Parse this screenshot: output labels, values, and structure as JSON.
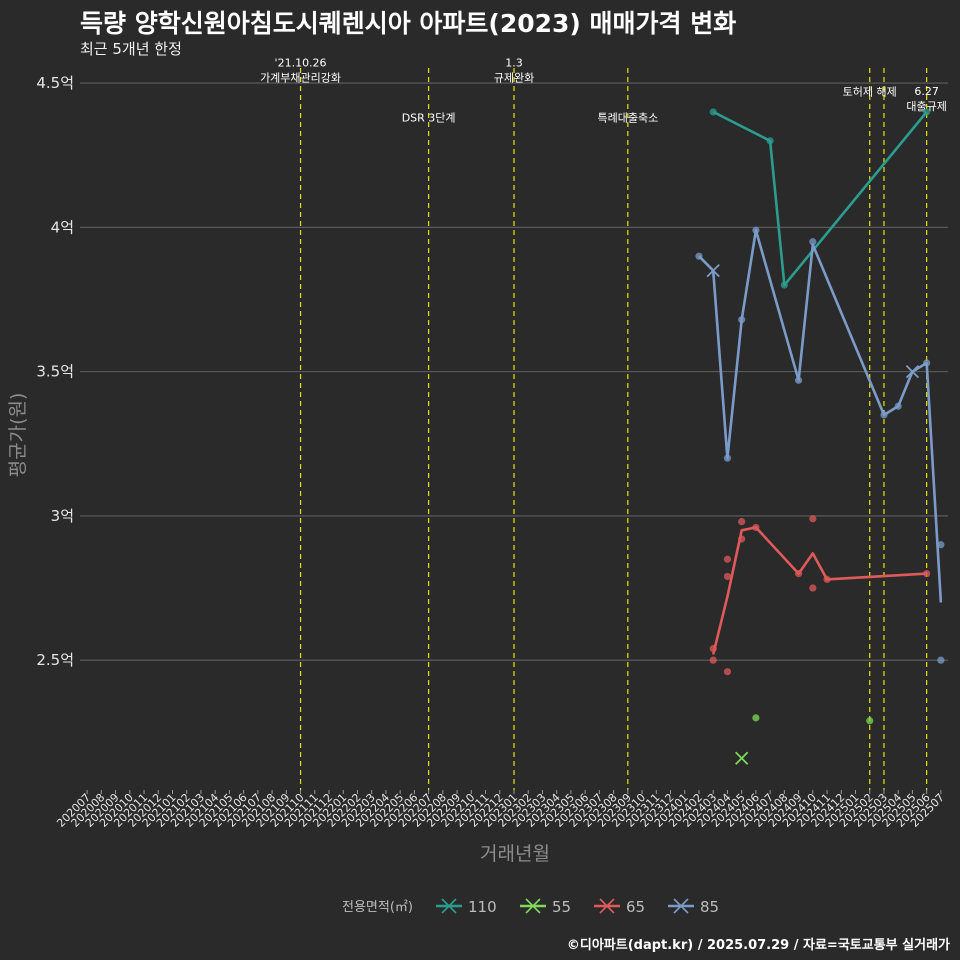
{
  "header": {
    "title": "득량 양학신원아침도시퀘렌시아 아파트(2023) 매매가격 변화",
    "subtitle": "최근 5개년 한정"
  },
  "footer": {
    "caption": "©디아파트(dapt.kr) / 2025.07.29 / 자료=국토교통부 실거래가"
  },
  "chart_data": {
    "type": "line",
    "xlabel": "거래년월",
    "ylabel": "평균가(원)",
    "x_categories": [
      "202007",
      "202008",
      "202009",
      "202010",
      "202011",
      "202012",
      "202101",
      "202102",
      "202103",
      "202104",
      "202105",
      "202106",
      "202107",
      "202108",
      "202109",
      "202110",
      "202111",
      "202112",
      "202201",
      "202202",
      "202203",
      "202204",
      "202205",
      "202206",
      "202207",
      "202208",
      "202209",
      "202210",
      "202211",
      "202212",
      "202301",
      "202302",
      "202303",
      "202304",
      "202305",
      "202306",
      "202307",
      "202308",
      "202309",
      "202310",
      "202311",
      "202312",
      "202401",
      "202402",
      "202403",
      "202404",
      "202405",
      "202406",
      "202407",
      "202408",
      "202409",
      "202410",
      "202411",
      "202412",
      "202501",
      "202502",
      "202503",
      "202504",
      "202505",
      "202506",
      "202507"
    ],
    "ylim": [
      2.05,
      4.58
    ],
    "yticks": [
      {
        "value": 2.5,
        "label": "2.5억"
      },
      {
        "value": 3.0,
        "label": "3억"
      },
      {
        "value": 3.5,
        "label": "3.5억"
      },
      {
        "value": 4.0,
        "label": "4억"
      },
      {
        "value": 4.5,
        "label": "4.5억"
      }
    ],
    "grid": true,
    "legend": {
      "title": "전용면적(㎡)",
      "placement": "bottom"
    },
    "events": [
      {
        "x": "202110",
        "lines": [
          "'21.10.26",
          "가계부채관리강화"
        ],
        "level": 4.52
      },
      {
        "x": "202207",
        "lines": [
          "DSR 3단계"
        ],
        "level": 4.38
      },
      {
        "x": "202301",
        "lines": [
          "1.3",
          "규제완화"
        ],
        "level": 4.52
      },
      {
        "x": "202309",
        "lines": [
          "특례대출축소"
        ],
        "level": 4.38
      },
      {
        "x": "202502",
        "lines": [
          "토허제 해제"
        ],
        "level": 4.47
      },
      {
        "x": "202503",
        "lines": [],
        "level": 4.47
      },
      {
        "x": "202506",
        "lines": [
          "6.27",
          "대출규제"
        ],
        "level": 4.42
      }
    ],
    "series": [
      {
        "name": "110",
        "color": "#2a9d8f",
        "line": [
          [
            "202403",
            4.4
          ],
          [
            "202407",
            4.3
          ],
          [
            "202408",
            3.8
          ],
          [
            "202506",
            4.4
          ]
        ],
        "points": [
          [
            "202403",
            4.4
          ],
          [
            "202407",
            4.3
          ],
          [
            "202408",
            3.8
          ],
          [
            "202506",
            4.4
          ]
        ],
        "crosses": []
      },
      {
        "name": "55",
        "color": "#7ed957",
        "line": [],
        "points": [
          [
            "202406",
            2.3
          ],
          [
            "202502",
            2.29
          ]
        ],
        "crosses": [
          [
            "202405",
            2.16
          ]
        ]
      },
      {
        "name": "65",
        "color": "#e05a5a",
        "line": [
          [
            "202403",
            2.52
          ],
          [
            "202404",
            2.72
          ],
          [
            "202405",
            2.95
          ],
          [
            "202406",
            2.96
          ],
          [
            "202409",
            2.8
          ],
          [
            "202410",
            2.87
          ],
          [
            "202411",
            2.78
          ],
          [
            "202506",
            2.8
          ]
        ],
        "points": [
          [
            "202403",
            2.54
          ],
          [
            "202403",
            2.5
          ],
          [
            "202404",
            2.85
          ],
          [
            "202404",
            2.79
          ],
          [
            "202404",
            2.46
          ],
          [
            "202405",
            2.98
          ],
          [
            "202405",
            2.92
          ],
          [
            "202406",
            2.96
          ],
          [
            "202409",
            2.8
          ],
          [
            "202410",
            2.99
          ],
          [
            "202410",
            2.75
          ],
          [
            "202411",
            2.78
          ],
          [
            "202506",
            2.8
          ]
        ],
        "crosses": []
      },
      {
        "name": "85",
        "color": "#7b9cc9",
        "line": [
          [
            "202402",
            3.9
          ],
          [
            "202403",
            3.85
          ],
          [
            "202404",
            3.2
          ],
          [
            "202405",
            3.68
          ],
          [
            "202406",
            3.99
          ],
          [
            "202409",
            3.47
          ],
          [
            "202410",
            3.94
          ],
          [
            "202503",
            3.35
          ],
          [
            "202504",
            3.38
          ],
          [
            "202505",
            3.5
          ],
          [
            "202506",
            3.53
          ],
          [
            "202507",
            2.7
          ]
        ],
        "points": [
          [
            "202402",
            3.9
          ],
          [
            "202404",
            3.2
          ],
          [
            "202405",
            3.68
          ],
          [
            "202406",
            3.99
          ],
          [
            "202409",
            3.47
          ],
          [
            "202410",
            3.95
          ],
          [
            "202503",
            3.35
          ],
          [
            "202504",
            3.38
          ],
          [
            "202506",
            3.53
          ],
          [
            "202507",
            2.9
          ],
          [
            "202507",
            2.5
          ]
        ],
        "crosses": [
          [
            "202403",
            3.85
          ],
          [
            "202505",
            3.5
          ]
        ]
      }
    ]
  }
}
